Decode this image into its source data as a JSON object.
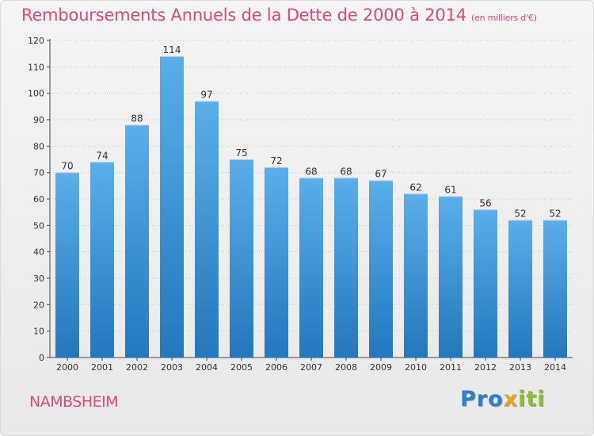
{
  "header": {
    "title": "Remboursements Annuels de la Dette de 2000 à 2014",
    "unit": "(en milliers d'€)"
  },
  "commune": "NAMBSHEIM",
  "logo": {
    "part1": "Pro",
    "part2": "x",
    "part3": "iti"
  },
  "colors": {
    "title": "#e0487a",
    "bar_top": "#5aaeea",
    "bar_bottom": "#2378bd"
  },
  "chart_data": {
    "type": "bar",
    "title": "Remboursements Annuels de la Dette de 2000 à 2014",
    "xlabel": "",
    "ylabel": "",
    "ylim": [
      0,
      120
    ],
    "yticks": [
      0,
      10,
      20,
      30,
      40,
      50,
      60,
      70,
      80,
      90,
      100,
      110,
      120
    ],
    "grid": true,
    "categories": [
      "2000",
      "2001",
      "2002",
      "2003",
      "2004",
      "2005",
      "2006",
      "2007",
      "2008",
      "2009",
      "2010",
      "2011",
      "2012",
      "2013",
      "2014"
    ],
    "values": [
      70,
      74,
      88,
      114,
      97,
      75,
      72,
      68,
      68,
      67,
      62,
      61,
      56,
      52,
      52
    ]
  }
}
